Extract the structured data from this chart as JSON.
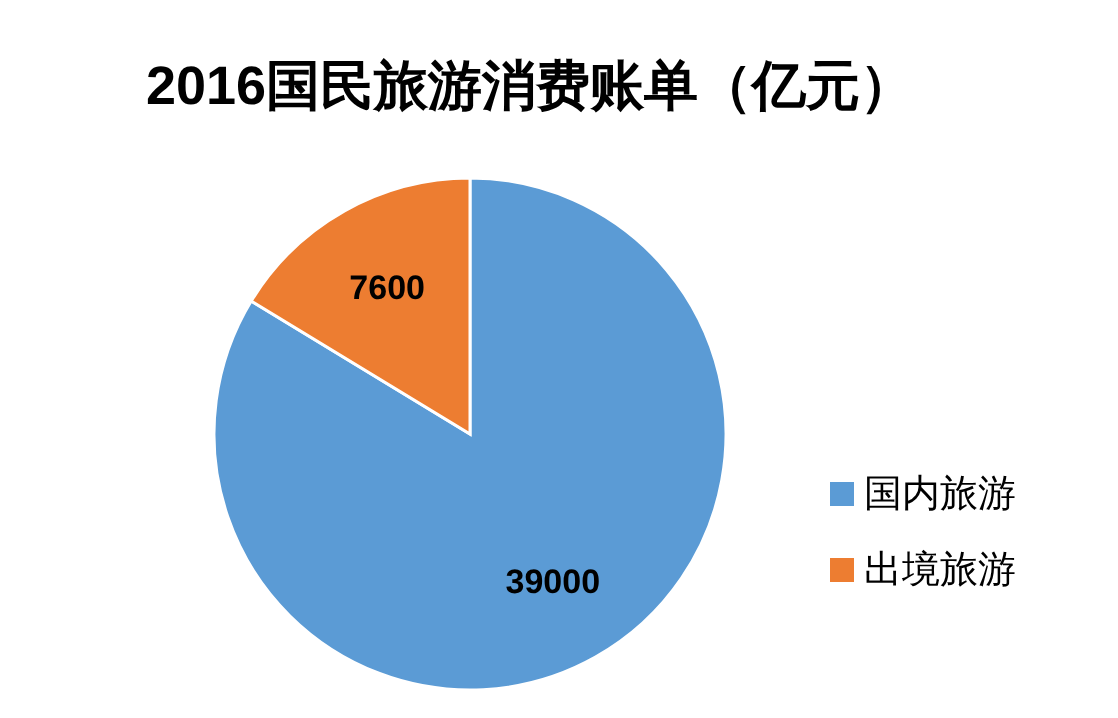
{
  "chart_data": {
    "type": "pie",
    "title": "2016国民旅游消费账单（亿元）",
    "categories": [
      "国内旅游",
      "出境旅游"
    ],
    "values": [
      39000,
      7600
    ],
    "colors": [
      "#5b9bd5",
      "#ed7d31"
    ],
    "data_labels": true,
    "legend": "right"
  }
}
